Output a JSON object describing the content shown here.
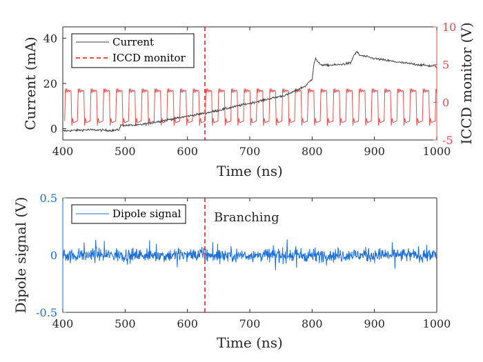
{
  "colors": {
    "current": "#404040",
    "iccd": "#ee4a4a",
    "dipole": "#1a6fdb",
    "axis": "#262626"
  },
  "chart_data": [
    {
      "id": "top",
      "type": "line",
      "xlabel": "Time (ns)",
      "ylabel_left": "Current (mA)",
      "ylabel_right": "ICCD monitor (V)",
      "xlim": [
        400,
        1000
      ],
      "ylim_left": [
        -5,
        45
      ],
      "ylim_right": [
        -5,
        10
      ],
      "xticks": [
        "400",
        "500",
        "600",
        "700",
        "800",
        "900",
        "1000"
      ],
      "yticks_left": [
        "0",
        "20",
        "40"
      ],
      "yticks_right": [
        "-5",
        "0",
        "5",
        "10"
      ],
      "legend": [
        "Current",
        "ICCD monitor"
      ],
      "legend_position": "top-left",
      "series": [
        {
          "name": "Current",
          "axis": "left",
          "points": [
            [
              400,
              -1
            ],
            [
              440,
              -0.5
            ],
            [
              480,
              -0.8
            ],
            [
              490,
              -0.5
            ],
            [
              493,
              1.5
            ],
            [
              520,
              1.5
            ],
            [
              560,
              3.5
            ],
            [
              600,
              5.5
            ],
            [
              640,
              7.5
            ],
            [
              680,
              10
            ],
            [
              720,
              12.5
            ],
            [
              760,
              15
            ],
            [
              790,
              19
            ],
            [
              800,
              22
            ],
            [
              803,
              29
            ],
            [
              806,
              31
            ],
            [
              810,
              29
            ],
            [
              818,
              28
            ],
            [
              840,
              28.2
            ],
            [
              862,
              29
            ],
            [
              867,
              32.5
            ],
            [
              872,
              34
            ],
            [
              876,
              32.5
            ],
            [
              900,
              31
            ],
            [
              940,
              29.3
            ],
            [
              980,
              28
            ],
            [
              1000,
              27.5
            ]
          ]
        },
        {
          "name": "ICCD monitor",
          "axis": "right",
          "periodic_square_wave": {
            "period_ns": 20.5,
            "start_ns": 403,
            "high_V": 1.5,
            "low_V": -2.5,
            "duty": 0.5
          }
        }
      ],
      "annotations": [
        {
          "type": "vline",
          "x": 628,
          "series": "ICCD monitor"
        }
      ]
    },
    {
      "id": "bottom",
      "type": "line",
      "xlabel": "Time (ns)",
      "ylabel": "Dipole signal (V)",
      "xlim": [
        400,
        1000
      ],
      "ylim": [
        -0.5,
        0.5
      ],
      "xticks": [
        "400",
        "500",
        "600",
        "700",
        "800",
        "900",
        "1000"
      ],
      "yticks": [
        "-0.5",
        "0",
        "0.5"
      ],
      "legend": [
        "Dipole signal"
      ],
      "legend_position": "top-left",
      "series": [
        {
          "name": "Dipole signal",
          "noise": {
            "mean_V": 0.0,
            "amplitude_V": 0.06,
            "peak_V": 0.14
          }
        }
      ],
      "annotations": [
        {
          "type": "vline",
          "x": 628,
          "text": "Branching"
        }
      ]
    }
  ]
}
